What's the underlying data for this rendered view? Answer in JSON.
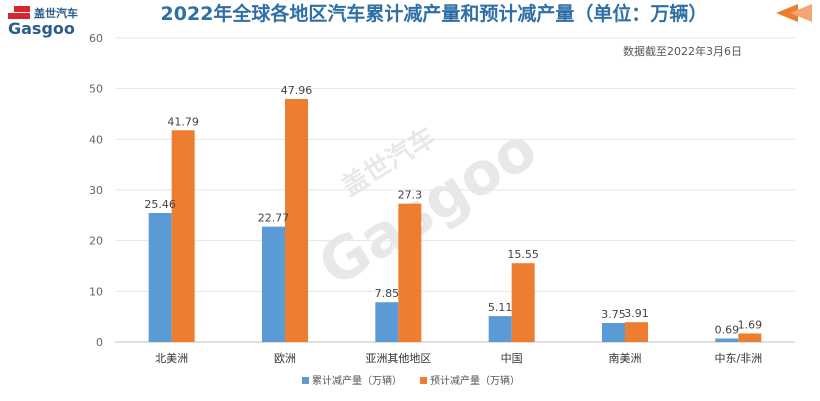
{
  "logo": {
    "brand_cn": "盖世汽车",
    "brand_en": "Gasgoo"
  },
  "watermark": {
    "brand_cn": "盖世汽车",
    "brand_en": "Gasgoo"
  },
  "colors": {
    "title": "#2f6fa6",
    "series_blue": "#5b9bd5",
    "series_orange": "#ed7d31",
    "arrow": "#ed7d31"
  },
  "chart_data": {
    "type": "bar",
    "title": "2022年全球各地区汽车累计减产量和预计减产量（单位：万辆）",
    "subtitle": "数据截至2022年3月6日",
    "xlabel": "",
    "ylabel": "",
    "ylim": [
      0,
      60
    ],
    "yticks": [
      0,
      10,
      20,
      30,
      40,
      50,
      60
    ],
    "grid": true,
    "legend_position": "bottom-center",
    "categories": [
      "北美洲",
      "欧洲",
      "亚洲其他地区",
      "中国",
      "南美洲",
      "中东/非洲"
    ],
    "series": [
      {
        "name": "累计减产量（万辆）",
        "values": [
          25.46,
          22.77,
          7.85,
          5.11,
          3.75,
          0.69
        ],
        "labels": [
          "25.46",
          "22.77",
          "7.85",
          "5.11",
          "3.75",
          "0.69"
        ]
      },
      {
        "name": "预计减产量（万辆）",
        "values": [
          41.79,
          47.96,
          27.3,
          15.55,
          3.91,
          1.69
        ],
        "labels": [
          "41.79",
          "47.96",
          "27.3",
          "15.55",
          "3.91",
          "1.69"
        ]
      }
    ]
  }
}
